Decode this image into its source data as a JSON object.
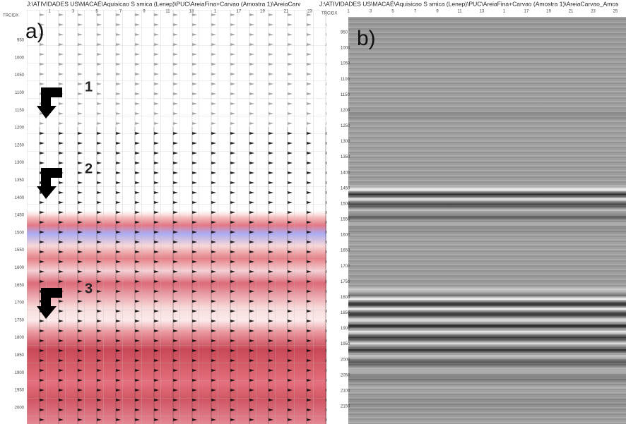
{
  "panel_a": {
    "label": "a)",
    "header": "J:\\ATIVIDADES US\\MACAÉ\\Aquisicao S smica (Lenep)\\PUC\\AreiaFina+Carvao (Amostra 1)\\AreiaCarv",
    "axis_label": "TRCIDX",
    "trace_labels": [
      1,
      3,
      5,
      7,
      9,
      11,
      13,
      1,
      17,
      19,
      21,
      23
    ],
    "time_labels": [
      950,
      1000,
      1050,
      1100,
      1150,
      1200,
      1250,
      1300,
      1350,
      1400,
      1450,
      1500,
      1550,
      1600,
      1650,
      1700,
      1750,
      1800,
      1850,
      1900,
      1950,
      2000
    ],
    "markers": [
      "1",
      "2",
      "3"
    ]
  },
  "panel_b": {
    "label": "b)",
    "header": "J:\\ATIVIDADES US\\MACAÉ\\Aquisicao S smica (Lenep)\\PUC\\AreiaFina+Carvao (Amostra 1)\\AreiaCarvao_Amos",
    "axis_label": "TRCIDX",
    "trace_labels": [
      1,
      3,
      5,
      7,
      9,
      11,
      13,
      1,
      17,
      19,
      21,
      23,
      25
    ],
    "time_labels": [
      950,
      1000,
      1050,
      1100,
      1150,
      1200,
      1250,
      1300,
      1350,
      1400,
      1450,
      1500,
      1550,
      1600,
      1650,
      1700,
      1750,
      1800,
      1850,
      1900,
      1950,
      2000,
      2050,
      2100,
      2150
    ]
  }
}
